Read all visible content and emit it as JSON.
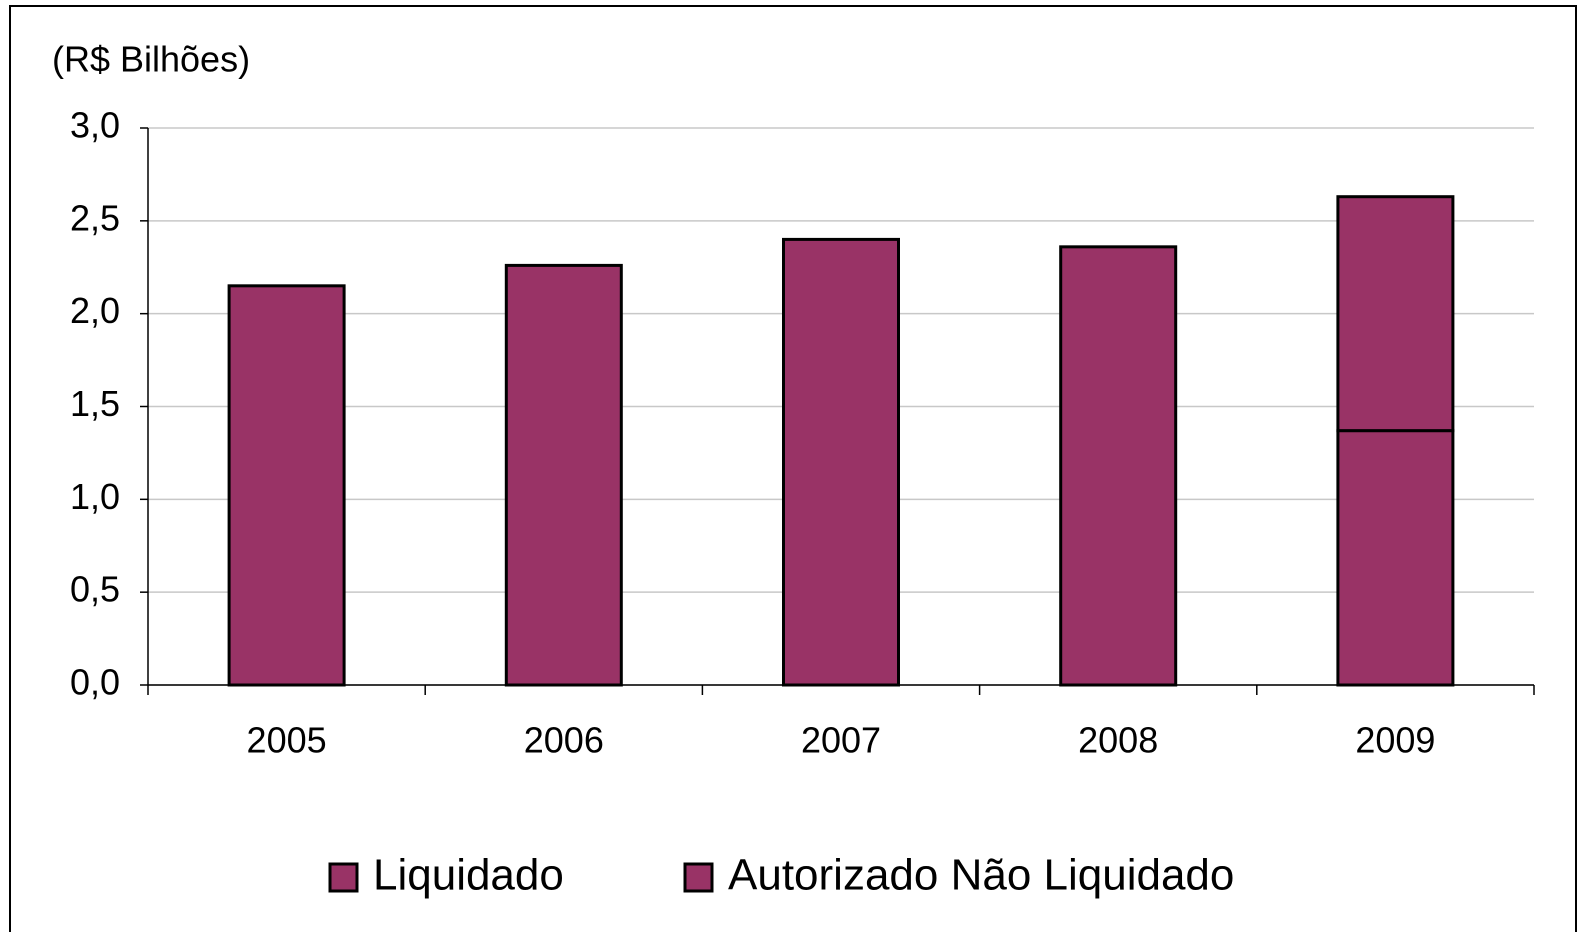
{
  "chart_data": {
    "type": "stacked_bar",
    "title": "(R$ Bilhões)",
    "categories": [
      "2005",
      "2006",
      "2007",
      "2008",
      "2009"
    ],
    "series": [
      {
        "name": "Liquidado",
        "color": "#993366",
        "values": [
          2.15,
          2.26,
          2.4,
          2.36,
          1.37
        ]
      },
      {
        "name": "Autorizado Não Liquidado",
        "color": "#993366",
        "values": [
          0,
          0,
          0,
          0,
          1.26
        ]
      }
    ],
    "ylim": [
      0,
      3
    ],
    "yticks": [
      {
        "value": 0,
        "label": "0,0"
      },
      {
        "value": 0.5,
        "label": "0,5"
      },
      {
        "value": 1,
        "label": "1,0"
      },
      {
        "value": 1.5,
        "label": "1,5"
      },
      {
        "value": 2,
        "label": "2,0"
      },
      {
        "value": 2.5,
        "label": "2,5"
      },
      {
        "value": 3,
        "label": "3,0"
      }
    ],
    "grid": true
  }
}
